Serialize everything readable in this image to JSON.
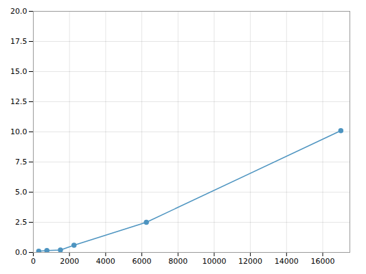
{
  "chart_data": {
    "type": "line",
    "x": [
      300,
      750,
      1500,
      2250,
      6250,
      17000
    ],
    "values": [
      0.1,
      0.15,
      0.2,
      0.6,
      2.5,
      10.1
    ],
    "color": "#4d94c0",
    "marker": "circle",
    "xlim": [
      0,
      17500
    ],
    "ylim": [
      0,
      20
    ],
    "xticks": [
      0,
      2000,
      4000,
      6000,
      8000,
      10000,
      12000,
      14000,
      16000
    ],
    "yticks": [
      {
        "value": 0,
        "label": "0.0"
      },
      2.5,
      {
        "value": 5,
        "label": "5.0"
      },
      7.5,
      {
        "value": 10,
        "label": "10.0"
      },
      12.5,
      {
        "value": 15,
        "label": "15.0"
      },
      17.5,
      {
        "value": 20,
        "label": "20.0"
      }
    ],
    "grid": true
  }
}
